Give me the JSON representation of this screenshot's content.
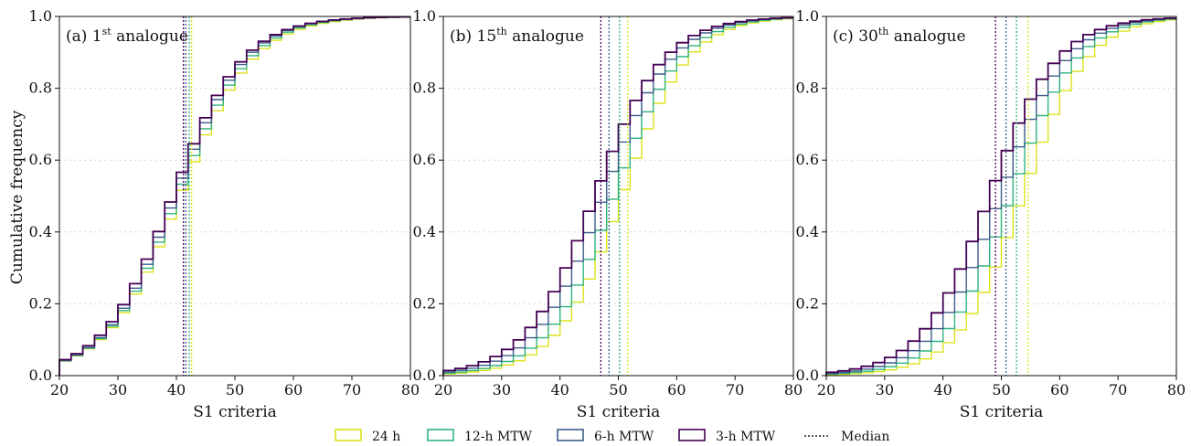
{
  "ylabel": "Cumulative frequency",
  "legend": {
    "items": [
      {
        "label": "24 h",
        "color": "#dde318",
        "style": "box"
      },
      {
        "label": "12-h MTW",
        "color": "#2fb47c",
        "style": "box"
      },
      {
        "label": "6-h MTW",
        "color": "#3b5d8a",
        "style": "box"
      },
      {
        "label": "3-h MTW",
        "color": "#440154",
        "style": "box"
      },
      {
        "label": "Median",
        "color": "#222222",
        "style": "dotted"
      }
    ]
  },
  "chart_data": [
    {
      "type": "step-cdf",
      "panel_label": {
        "prefix": "(a) 1",
        "sup": "st",
        "suffix": " analogue"
      },
      "xlabel": "S1 criteria",
      "xlim": [
        20,
        80
      ],
      "ylim": [
        0,
        1
      ],
      "xticks": [
        "20",
        "30",
        "40",
        "50",
        "60",
        "70",
        "80"
      ],
      "yticks": [
        "0.0",
        "0.2",
        "0.4",
        "0.6",
        "0.8",
        "1.0"
      ],
      "grid": "horizontal-dotted",
      "series": [
        {
          "name": "24 h",
          "color": "#dde318",
          "median": 42.6,
          "mu": 41.6,
          "s": 6.2
        },
        {
          "name": "12-h MTW",
          "color": "#2fb47c",
          "median": 42.2,
          "mu": 41.2,
          "s": 6.1
        },
        {
          "name": "6-h MTW",
          "color": "#3b5d8a",
          "median": 41.6,
          "mu": 40.8,
          "s": 6.0
        },
        {
          "name": "3-h MTW",
          "color": "#440154",
          "median": 41.2,
          "mu": 40.4,
          "s": 6.0
        }
      ]
    },
    {
      "type": "step-cdf",
      "panel_label": {
        "prefix": "(b) 15",
        "sup": "th",
        "suffix": " analogue"
      },
      "xlabel": "S1 criteria",
      "xlim": [
        20,
        80
      ],
      "ylim": [
        0,
        1
      ],
      "xticks": [
        "20",
        "30",
        "40",
        "50",
        "60",
        "70",
        "80"
      ],
      "yticks": [
        "0.0",
        "0.2",
        "0.4",
        "0.6",
        "0.8",
        "1.0"
      ],
      "grid": "horizontal-dotted",
      "series": [
        {
          "name": "24 h",
          "color": "#dde318",
          "median": 51.6,
          "mu": 51.6,
          "s": 5.6
        },
        {
          "name": "12-h MTW",
          "color": "#2fb47c",
          "median": 50.2,
          "mu": 50.2,
          "s": 5.7
        },
        {
          "name": "6-h MTW",
          "color": "#3b5d8a",
          "median": 48.4,
          "mu": 48.4,
          "s": 5.8
        },
        {
          "name": "3-h MTW",
          "color": "#440154",
          "median": 47.0,
          "mu": 47.0,
          "s": 5.9
        }
      ]
    },
    {
      "type": "step-cdf",
      "panel_label": {
        "prefix": "(c) 30",
        "sup": "th",
        "suffix": " analogue"
      },
      "xlabel": "S1 criteria",
      "xlim": [
        20,
        80
      ],
      "ylim": [
        0,
        1
      ],
      "xticks": [
        "20",
        "30",
        "40",
        "50",
        "60",
        "70",
        "80"
      ],
      "yticks": [
        "0.0",
        "0.2",
        "0.4",
        "0.6",
        "0.8",
        "1.0"
      ],
      "grid": "horizontal-dotted",
      "series": [
        {
          "name": "24 h",
          "color": "#dde318",
          "median": 54.6,
          "mu": 54.6,
          "s": 5.5
        },
        {
          "name": "12-h MTW",
          "color": "#2fb47c",
          "median": 52.6,
          "mu": 52.6,
          "s": 5.6
        },
        {
          "name": "6-h MTW",
          "color": "#3b5d8a",
          "median": 50.8,
          "mu": 50.8,
          "s": 5.7
        },
        {
          "name": "3-h MTW",
          "color": "#440154",
          "median": 49.0,
          "mu": 49.0,
          "s": 5.8
        }
      ]
    }
  ]
}
